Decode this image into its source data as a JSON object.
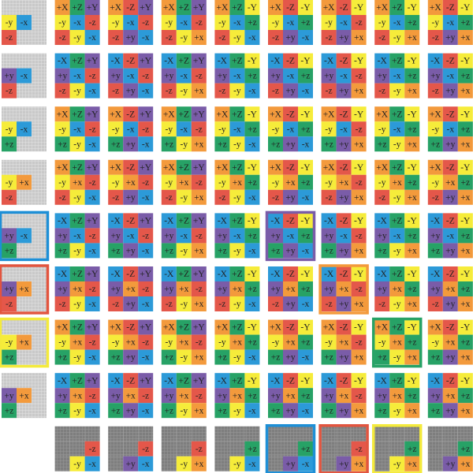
{
  "colors": {
    "+x": "#f39a3c",
    "-x": "#2c9ad8",
    "+y": "#7a5ca8",
    "-y": "#f6ec3a",
    "+z": "#27a266",
    "-z": "#e4574a"
  },
  "highlights": [
    {
      "row": 4,
      "col": 0,
      "color": "#1e8fd6"
    },
    {
      "row": 5,
      "col": 0,
      "color": "#e2553f"
    },
    {
      "row": 6,
      "col": 0,
      "color": "#f4ea3c"
    },
    {
      "row": 8,
      "col": 5,
      "color": "#1e8fd6"
    },
    {
      "row": 8,
      "col": 6,
      "color": "#e2553f"
    },
    {
      "row": 8,
      "col": 7,
      "color": "#f4ea3c"
    },
    {
      "row": 4,
      "col": 5,
      "color": "#7a5ca8"
    },
    {
      "row": 5,
      "col": 6,
      "color": "#f39a3c"
    },
    {
      "row": 6,
      "col": 7,
      "color": "#27a266"
    }
  ],
  "grid": [
    [
      [
        null,
        null,
        null,
        "-y",
        "-x",
        null,
        "-z",
        null,
        null
      ],
      [
        "+X",
        "+Z",
        "+Y",
        "-y",
        "-x",
        "-z",
        "-z",
        "-y",
        "-x"
      ],
      [
        "+X",
        "-Z",
        "+Y",
        "-y",
        "-x",
        "-z",
        "-z",
        "+y",
        "-x"
      ],
      [
        "+X",
        "+Z",
        "+Y",
        "-y",
        "-x",
        "-z",
        "-z",
        "-y",
        "+x"
      ],
      [
        "+X",
        "+Z",
        "-Y",
        "-y",
        "-x",
        "+z",
        "-z",
        "-y",
        "-x"
      ],
      [
        "+X",
        "-Z",
        "-Y",
        "-y",
        "-x",
        "+z",
        "-z",
        "+y",
        "-x"
      ],
      [
        "+X",
        "-Z",
        "-Y",
        "-y",
        "-x",
        "-z",
        "-z",
        "+y",
        "+x"
      ],
      [
        "+X",
        "+Z",
        "-Y",
        "-y",
        "-x",
        "+z",
        "-z",
        "-y",
        "+x"
      ],
      [
        "+X",
        "-Z",
        "-Y",
        "-y",
        "-x",
        "+z",
        "-z",
        "+y",
        "+x"
      ]
    ],
    [
      [
        null,
        null,
        null,
        "+y",
        "-x",
        null,
        "-z",
        null,
        null
      ],
      [
        "-X",
        "+Z",
        "+Y",
        "+y",
        "-x",
        "-z",
        "-z",
        "-y",
        "-x"
      ],
      [
        "-X",
        "-Z",
        "+Y",
        "+y",
        "-x",
        "-z",
        "-z",
        "+y",
        "-x"
      ],
      [
        "-X",
        "+Z",
        "+Y",
        "+y",
        "-x",
        "-z",
        "-z",
        "-y",
        "+x"
      ],
      [
        "-X",
        "+Z",
        "-Y",
        "+y",
        "-x",
        "+z",
        "-z",
        "-y",
        "-x"
      ],
      [
        "-X",
        "-Z",
        "-Y",
        "+y",
        "-x",
        "+z",
        "-z",
        "+y",
        "-x"
      ],
      [
        "-X",
        "-Z",
        "-Y",
        "+y",
        "-x",
        "-z",
        "-z",
        "+y",
        "+x"
      ],
      [
        "-X",
        "+Z",
        "-Y",
        "+y",
        "-x",
        "+z",
        "-z",
        "-y",
        "+x"
      ],
      [
        "-X",
        "-Z",
        "-Y",
        "+y",
        "-x",
        "+z",
        "-z",
        "+y",
        "+x"
      ]
    ],
    [
      [
        null,
        null,
        null,
        "-y",
        "-x",
        null,
        "+z",
        null,
        null
      ],
      [
        "+X",
        "+Z",
        "+Y",
        "-y",
        "-x",
        "-z",
        "+z",
        "-y",
        "-x"
      ],
      [
        "+X",
        "-Z",
        "+Y",
        "-y",
        "-x",
        "-z",
        "+z",
        "+y",
        "-x"
      ],
      [
        "+X",
        "+Z",
        "+Y",
        "-y",
        "-x",
        "-z",
        "+z",
        "-y",
        "+x"
      ],
      [
        "+X",
        "+Z",
        "-Y",
        "-y",
        "-x",
        "+z",
        "+z",
        "-y",
        "-x"
      ],
      [
        "+X",
        "-Z",
        "-Y",
        "-y",
        "-x",
        "+z",
        "+z",
        "+y",
        "-x"
      ],
      [
        "+X",
        "-Z",
        "-Y",
        "-y",
        "-x",
        "-z",
        "+z",
        "+y",
        "+x"
      ],
      [
        "+X",
        "+Z",
        "-Y",
        "-y",
        "-x",
        "+z",
        "+z",
        "-y",
        "+x"
      ],
      [
        "+X",
        "-Z",
        "-Y",
        "-y",
        "-x",
        "+z",
        "+z",
        "+y",
        "+x"
      ]
    ],
    [
      [
        null,
        null,
        null,
        "-y",
        "+x",
        null,
        "-z",
        null,
        null
      ],
      [
        "+X",
        "+Z",
        "+Y",
        "-y",
        "+x",
        "-z",
        "-z",
        "-y",
        "-x"
      ],
      [
        "+X",
        "-Z",
        "+Y",
        "-y",
        "+x",
        "-z",
        "-z",
        "+y",
        "-x"
      ],
      [
        "+X",
        "+Z",
        "+Y",
        "-y",
        "+x",
        "-z",
        "-z",
        "-y",
        "+x"
      ],
      [
        "+X",
        "+Z",
        "-Y",
        "-y",
        "+x",
        "+z",
        "-z",
        "-y",
        "-x"
      ],
      [
        "+X",
        "-Z",
        "-Y",
        "-y",
        "+x",
        "+z",
        "-z",
        "+y",
        "-x"
      ],
      [
        "+X",
        "-Z",
        "-Y",
        "-y",
        "+x",
        "-z",
        "-z",
        "+y",
        "+x"
      ],
      [
        "+X",
        "+Z",
        "-Y",
        "-y",
        "+x",
        "+z",
        "-z",
        "-y",
        "+x"
      ],
      [
        "+X",
        "-Z",
        "-Y",
        "-y",
        "+x",
        "+z",
        "-z",
        "+y",
        "+x"
      ]
    ],
    [
      [
        null,
        null,
        null,
        "+y",
        "-x",
        null,
        "+z",
        null,
        null
      ],
      [
        "-X",
        "+Z",
        "+Y",
        "+y",
        "-x",
        "-z",
        "+z",
        "-y",
        "-x"
      ],
      [
        "-X",
        "-Z",
        "+Y",
        "+y",
        "-x",
        "-z",
        "+z",
        "+y",
        "-x"
      ],
      [
        "-X",
        "+Z",
        "+Y",
        "+y",
        "-x",
        "-z",
        "+z",
        "-y",
        "+x"
      ],
      [
        "-X",
        "+Z",
        "-Y",
        "+y",
        "-x",
        "+z",
        "+z",
        "-y",
        "-x"
      ],
      [
        "-X",
        "-Z",
        "-Y",
        "+y",
        "-x",
        "+z",
        "+z",
        "+y",
        "-x"
      ],
      [
        "-X",
        "-Z",
        "-Y",
        "+y",
        "-x",
        "-z",
        "+z",
        "+y",
        "+x"
      ],
      [
        "-X",
        "+Z",
        "-Y",
        "+y",
        "-x",
        "+z",
        "+z",
        "-y",
        "+x"
      ],
      [
        "-X",
        "-Z",
        "-Y",
        "+y",
        "-x",
        "+z",
        "+z",
        "+y",
        "+x"
      ]
    ],
    [
      [
        null,
        null,
        null,
        "+y",
        "+x",
        null,
        "-z",
        null,
        null
      ],
      [
        "-X",
        "+Z",
        "+Y",
        "+y",
        "+x",
        "-z",
        "-z",
        "-y",
        "-x"
      ],
      [
        "-X",
        "-Z",
        "+Y",
        "+y",
        "+x",
        "-z",
        "-z",
        "+y",
        "-x"
      ],
      [
        "-X",
        "+Z",
        "+Y",
        "+y",
        "+x",
        "-z",
        "-z",
        "-y",
        "+x"
      ],
      [
        "-X",
        "+Z",
        "-Y",
        "+y",
        "+x",
        "+z",
        "-z",
        "-y",
        "-x"
      ],
      [
        "-X",
        "-Z",
        "-Y",
        "+y",
        "+x",
        "+z",
        "-z",
        "+y",
        "-x"
      ],
      [
        "-X",
        "-Z",
        "-Y",
        "+y",
        "+x",
        "-z",
        "-z",
        "+y",
        "+x"
      ],
      [
        "-X",
        "+Z",
        "-Y",
        "+y",
        "+x",
        "+z",
        "-z",
        "-y",
        "+x"
      ],
      [
        "-X",
        "-Z",
        "-Y",
        "+y",
        "+x",
        "+z",
        "-z",
        "+y",
        "+x"
      ]
    ],
    [
      [
        null,
        null,
        null,
        "-y",
        "+x",
        null,
        "+z",
        null,
        null
      ],
      [
        "+X",
        "+Z",
        "+Y",
        "-y",
        "+x",
        "-z",
        "+z",
        "-y",
        "-x"
      ],
      [
        "+X",
        "-Z",
        "+Y",
        "-y",
        "+x",
        "-z",
        "+z",
        "+y",
        "-x"
      ],
      [
        "+X",
        "+Z",
        "+Y",
        "-y",
        "+x",
        "-z",
        "+z",
        "-y",
        "+x"
      ],
      [
        "+X",
        "+Z",
        "-Y",
        "-y",
        "+x",
        "+z",
        "+z",
        "-y",
        "-x"
      ],
      [
        "+X",
        "-Z",
        "-Y",
        "-y",
        "+x",
        "+z",
        "+z",
        "+y",
        "-x"
      ],
      [
        "+X",
        "-Z",
        "-Y",
        "-y",
        "+x",
        "-z",
        "+z",
        "+y",
        "+x"
      ],
      [
        "+X",
        "+Z",
        "-Y",
        "-y",
        "+x",
        "+z",
        "+z",
        "-y",
        "+x"
      ],
      [
        "+X",
        "-Z",
        "-Y",
        "-y",
        "+x",
        "+z",
        "+z",
        "+y",
        "+x"
      ]
    ],
    [
      [
        null,
        null,
        null,
        "+y",
        "+x",
        null,
        "+z",
        null,
        null
      ],
      [
        "-X",
        "+Z",
        "+Y",
        "+y",
        "+x",
        "-z",
        "+z",
        "-y",
        "-x"
      ],
      [
        "-X",
        "-Z",
        "+Y",
        "+y",
        "+x",
        "-z",
        "+z",
        "+y",
        "-x"
      ],
      [
        "-X",
        "+Z",
        "+Y",
        "+y",
        "+x",
        "-z",
        "+z",
        "-y",
        "+x"
      ],
      [
        "-X",
        "+Z",
        "-Y",
        "+y",
        "+x",
        "+z",
        "+z",
        "-y",
        "-x"
      ],
      [
        "-X",
        "-Z",
        "-Y",
        "+y",
        "+x",
        "+z",
        "+z",
        "+y",
        "-x"
      ],
      [
        "-X",
        "-Z",
        "-Y",
        "+y",
        "+x",
        "-z",
        "+z",
        "+y",
        "+x"
      ],
      [
        "-X",
        "+Z",
        "-Y",
        "+y",
        "+x",
        "+z",
        "+z",
        "-y",
        "+x"
      ],
      [
        "-X",
        "-Z",
        "-Y",
        "+y",
        "+x",
        "+z",
        "+z",
        "+y",
        "+x"
      ]
    ],
    [
      null,
      [
        null,
        null,
        null,
        null,
        null,
        "-z",
        null,
        "-y",
        "-x"
      ],
      [
        null,
        null,
        null,
        null,
        null,
        "-z",
        null,
        "+y",
        "-x"
      ],
      [
        null,
        null,
        null,
        null,
        null,
        "-z",
        null,
        "-y",
        "+x"
      ],
      [
        null,
        null,
        null,
        null,
        null,
        "+z",
        null,
        "-y",
        "-x"
      ],
      [
        null,
        null,
        null,
        null,
        null,
        "+z",
        null,
        "+y",
        "-x"
      ],
      [
        null,
        null,
        null,
        null,
        null,
        "-z",
        null,
        "+y",
        "+x"
      ],
      [
        null,
        null,
        null,
        null,
        null,
        "+z",
        null,
        "-y",
        "+x"
      ],
      [
        null,
        null,
        null,
        null,
        null,
        "+z",
        null,
        "+y",
        "+x"
      ]
    ]
  ]
}
